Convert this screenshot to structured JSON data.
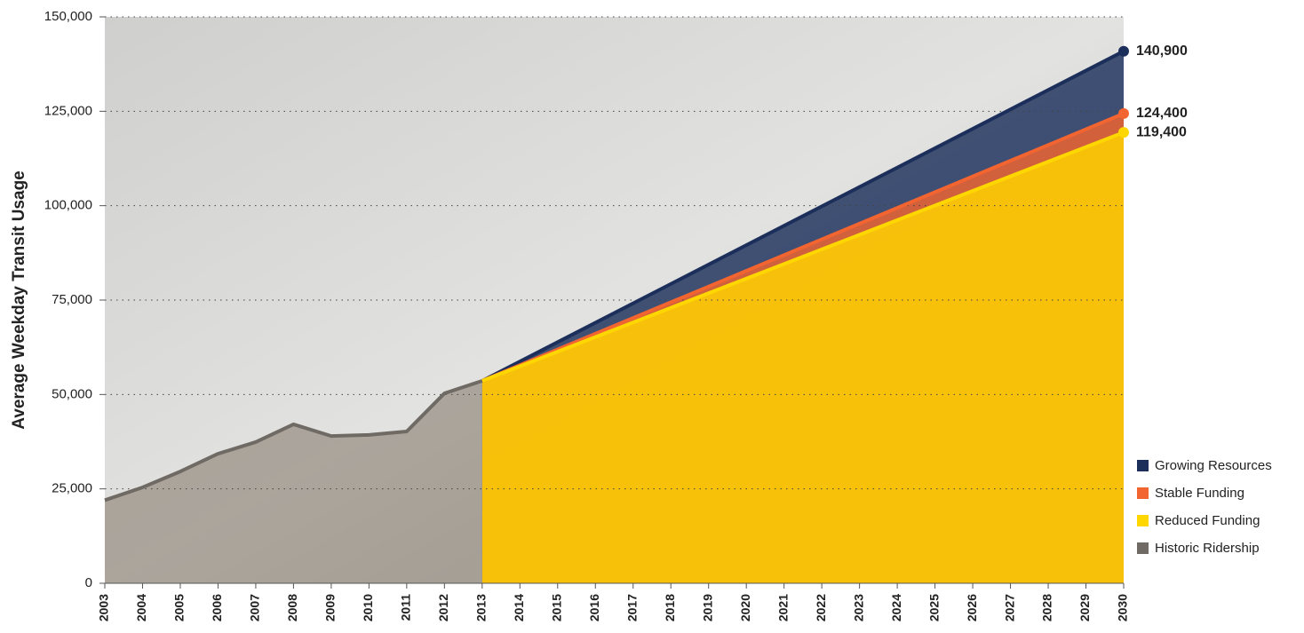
{
  "chart_data": {
    "type": "line",
    "y_label": "Average Weekday Transit Usage",
    "xlim": [
      2003,
      2030
    ],
    "xticks": [
      2003,
      2004,
      2005,
      2006,
      2007,
      2008,
      2009,
      2010,
      2011,
      2012,
      2013,
      2014,
      2015,
      2016,
      2017,
      2018,
      2019,
      2020,
      2021,
      2022,
      2023,
      2024,
      2025,
      2026,
      2027,
      2028,
      2029,
      2030
    ],
    "ylim": [
      0,
      150000
    ],
    "yticks": [
      0,
      {
        "value": 25000,
        "label": "25,000"
      },
      {
        "value": 50000,
        "label": "50,000"
      },
      {
        "value": 75000,
        "label": "75,000"
      },
      {
        "value": 100000,
        "label": "100,000"
      },
      {
        "value": 125000,
        "label": "125,000"
      },
      {
        "value": 150000,
        "label": "150,000"
      }
    ],
    "grid": true,
    "legend": "lower right",
    "series": [
      {
        "name": "Growing Resources",
        "color": "#1c2f5b",
        "x": [
          2013,
          2030
        ],
        "values": [
          53600,
          140900
        ],
        "value_labels": [
          null,
          "140,900"
        ]
      },
      {
        "name": "Stable Funding",
        "color": "#f26430",
        "x": [
          2013,
          2030
        ],
        "values": [
          53600,
          124400
        ],
        "value_labels": [
          null,
          "124,400"
        ]
      },
      {
        "name": "Reduced Funding",
        "color": "#ffd700",
        "x": [
          2013,
          2030
        ],
        "values": [
          53600,
          119400
        ],
        "value_labels": [
          null,
          "119,400"
        ]
      },
      {
        "name": "Historic Ridership",
        "color": "#6f6a64",
        "x": [
          2003,
          2004,
          2005,
          2006,
          2007,
          2008,
          2009,
          2010,
          2011,
          2012,
          2013
        ],
        "values": [
          22000,
          25400,
          29600,
          34300,
          37400,
          42100,
          39000,
          39300,
          40200,
          50300,
          53600
        ]
      }
    ]
  }
}
